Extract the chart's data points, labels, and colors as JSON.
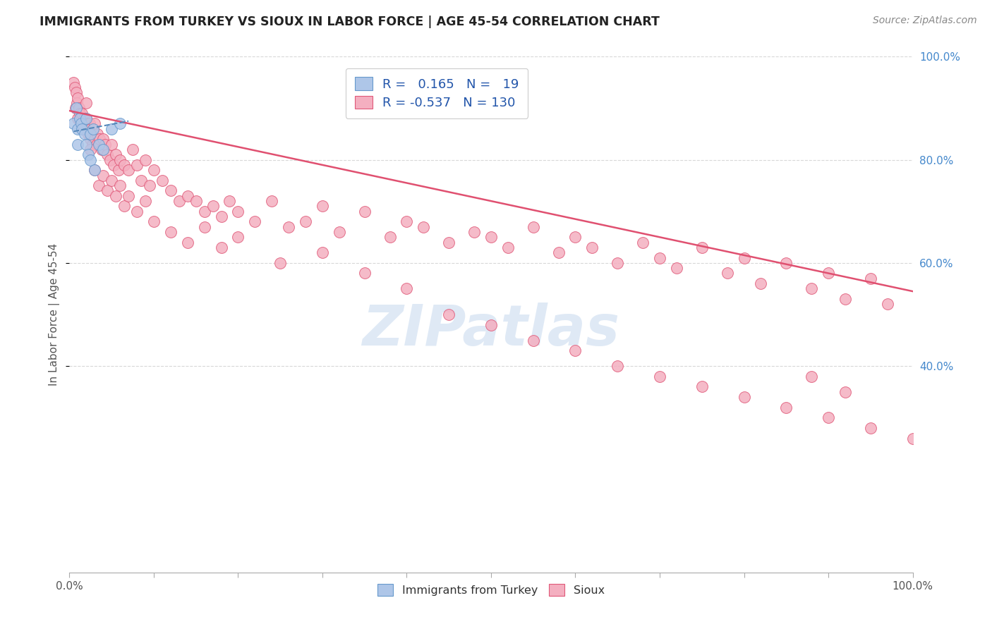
{
  "title": "IMMIGRANTS FROM TURKEY VS SIOUX IN LABOR FORCE | AGE 45-54 CORRELATION CHART",
  "source": "Source: ZipAtlas.com",
  "ylabel": "In Labor Force | Age 45-54",
  "xlim": [
    0.0,
    1.0
  ],
  "ylim": [
    0.0,
    1.0
  ],
  "legend_r_turkey": "0.165",
  "legend_n_turkey": "19",
  "legend_r_sioux": "-0.537",
  "legend_n_sioux": "130",
  "turkey_color": "#aec6e8",
  "turkey_edge_color": "#6699cc",
  "sioux_color": "#f4afc0",
  "sioux_edge_color": "#e05878",
  "turkey_line_color": "#5588bb",
  "sioux_line_color": "#e05070",
  "watermark": "ZIPatlas",
  "background_color": "#ffffff",
  "grid_color": "#d8d8d8",
  "right_tick_color": "#4488cc",
  "bottom_label_color": "#555555",
  "title_color": "#222222",
  "source_color": "#888888",
  "sioux_line_start_x": 0.0,
  "sioux_line_start_y": 0.895,
  "sioux_line_end_x": 1.0,
  "sioux_line_end_y": 0.545,
  "turkey_line_start_x": 0.005,
  "turkey_line_start_y": 0.855,
  "turkey_line_end_x": 0.07,
  "turkey_line_end_y": 0.875,
  "turkey_x": [
    0.005,
    0.008,
    0.01,
    0.01,
    0.012,
    0.014,
    0.015,
    0.018,
    0.02,
    0.02,
    0.022,
    0.025,
    0.025,
    0.028,
    0.03,
    0.035,
    0.04,
    0.05,
    0.06
  ],
  "turkey_y": [
    0.87,
    0.9,
    0.86,
    0.83,
    0.88,
    0.87,
    0.86,
    0.85,
    0.88,
    0.83,
    0.81,
    0.85,
    0.8,
    0.86,
    0.78,
    0.83,
    0.82,
    0.86,
    0.87
  ],
  "sioux_x": [
    0.005,
    0.006,
    0.007,
    0.008,
    0.009,
    0.01,
    0.01,
    0.011,
    0.012,
    0.013,
    0.014,
    0.015,
    0.016,
    0.017,
    0.018,
    0.019,
    0.02,
    0.02,
    0.021,
    0.022,
    0.023,
    0.024,
    0.025,
    0.025,
    0.026,
    0.027,
    0.028,
    0.03,
    0.03,
    0.032,
    0.033,
    0.035,
    0.036,
    0.038,
    0.04,
    0.041,
    0.042,
    0.045,
    0.048,
    0.05,
    0.052,
    0.055,
    0.058,
    0.06,
    0.065,
    0.07,
    0.075,
    0.08,
    0.085,
    0.09,
    0.095,
    0.1,
    0.11,
    0.12,
    0.13,
    0.14,
    0.15,
    0.16,
    0.17,
    0.18,
    0.19,
    0.2,
    0.22,
    0.24,
    0.26,
    0.28,
    0.3,
    0.32,
    0.35,
    0.38,
    0.4,
    0.42,
    0.45,
    0.48,
    0.5,
    0.52,
    0.55,
    0.58,
    0.6,
    0.62,
    0.65,
    0.68,
    0.7,
    0.72,
    0.75,
    0.78,
    0.8,
    0.82,
    0.85,
    0.88,
    0.9,
    0.92,
    0.95,
    0.97,
    0.025,
    0.03,
    0.035,
    0.04,
    0.045,
    0.05,
    0.055,
    0.06,
    0.065,
    0.07,
    0.08,
    0.09,
    0.1,
    0.12,
    0.14,
    0.16,
    0.18,
    0.2,
    0.25,
    0.3,
    0.35,
    0.4,
    0.45,
    0.5,
    0.55,
    0.6,
    0.65,
    0.7,
    0.75,
    0.8,
    0.85,
    0.9,
    0.95,
    1.0,
    0.88,
    0.92
  ],
  "sioux_y": [
    0.95,
    0.94,
    0.9,
    0.93,
    0.91,
    0.92,
    0.88,
    0.9,
    0.89,
    0.87,
    0.88,
    0.89,
    0.86,
    0.88,
    0.87,
    0.86,
    0.91,
    0.88,
    0.87,
    0.85,
    0.86,
    0.87,
    0.84,
    0.86,
    0.85,
    0.83,
    0.86,
    0.84,
    0.87,
    0.83,
    0.85,
    0.83,
    0.84,
    0.82,
    0.84,
    0.82,
    0.83,
    0.81,
    0.8,
    0.83,
    0.79,
    0.81,
    0.78,
    0.8,
    0.79,
    0.78,
    0.82,
    0.79,
    0.76,
    0.8,
    0.75,
    0.78,
    0.76,
    0.74,
    0.72,
    0.73,
    0.72,
    0.7,
    0.71,
    0.69,
    0.72,
    0.7,
    0.68,
    0.72,
    0.67,
    0.68,
    0.71,
    0.66,
    0.7,
    0.65,
    0.68,
    0.67,
    0.64,
    0.66,
    0.65,
    0.63,
    0.67,
    0.62,
    0.65,
    0.63,
    0.6,
    0.64,
    0.61,
    0.59,
    0.63,
    0.58,
    0.61,
    0.56,
    0.6,
    0.55,
    0.58,
    0.53,
    0.57,
    0.52,
    0.82,
    0.78,
    0.75,
    0.77,
    0.74,
    0.76,
    0.73,
    0.75,
    0.71,
    0.73,
    0.7,
    0.72,
    0.68,
    0.66,
    0.64,
    0.67,
    0.63,
    0.65,
    0.6,
    0.62,
    0.58,
    0.55,
    0.5,
    0.48,
    0.45,
    0.43,
    0.4,
    0.38,
    0.36,
    0.34,
    0.32,
    0.3,
    0.28,
    0.26,
    0.38,
    0.35
  ]
}
